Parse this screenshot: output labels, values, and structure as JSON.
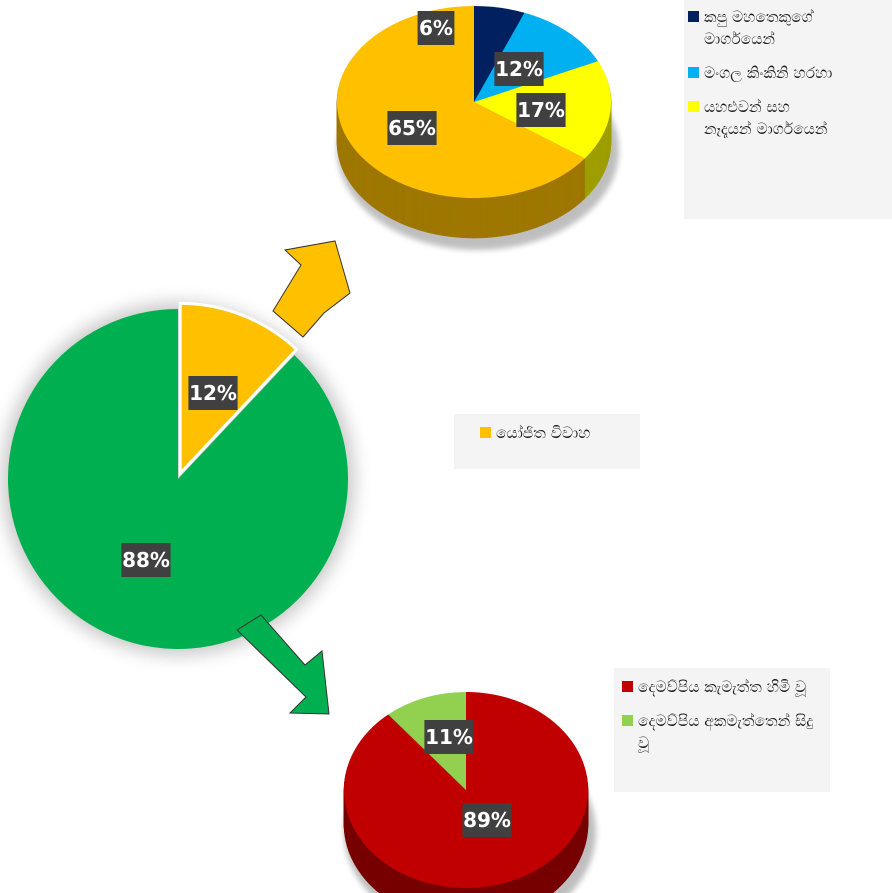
{
  "chart_data": [
    {
      "type": "pie",
      "series": [
        {
          "name": "",
          "values": [
            12,
            88
          ]
        }
      ],
      "categories": [
        "යෝජිත විවාහ",
        ""
      ],
      "data_labels": [
        "12%",
        "88%"
      ],
      "colors": [
        "#ffc000",
        "#00b050"
      ]
    },
    {
      "type": "pie",
      "categories": [
        "කපු මහතෙකුගේ මාර්ගයෙන්",
        "මංගල කිංකිනි හරහා",
        "යහළුවන් සහ නෑදෑයන් මාර්ගයෙන්",
        ""
      ],
      "values": [
        6,
        12,
        17,
        65
      ],
      "data_labels": [
        "6%",
        "12%",
        "17%",
        "65%"
      ],
      "colors": [
        "#002060",
        "#00b0f0",
        "#ffff00",
        "#ffc000"
      ]
    },
    {
      "type": "pie",
      "categories": [
        "දෙමව්පිය කැමැත්ත හිමි වූ",
        "දෙමව්පිය අකමැත්තෙන් සිදු වූ"
      ],
      "values": [
        89,
        11
      ],
      "data_labels": [
        "89%",
        "11%"
      ],
      "colors": [
        "#c00000",
        "#92d050"
      ]
    }
  ],
  "legends": {
    "top": [
      {
        "label": "කපු මහතෙකුගේ මාර්ගයෙන්",
        "color": "#002060"
      },
      {
        "label": "මංගල කිංකිනි හරහා",
        "color": "#00b0f0"
      },
      {
        "label": "යහළුවන් සහ නෑදෑයන් මාර්ගයෙන්",
        "color": "#ffff00"
      }
    ],
    "middle": [
      {
        "label": "යෝජිත විවාහ",
        "color": "#ffc000"
      }
    ],
    "bottom": [
      {
        "label": "දෙමව්පිය කැමැත්ත හිමි වූ",
        "color": "#c00000"
      },
      {
        "label": "දෙමව්පිය අකමැත්තෙන් සිදු වූ",
        "color": "#92d050"
      }
    ]
  },
  "arrows": {
    "up_color": "#ffc000",
    "down_color": "#00b050"
  }
}
